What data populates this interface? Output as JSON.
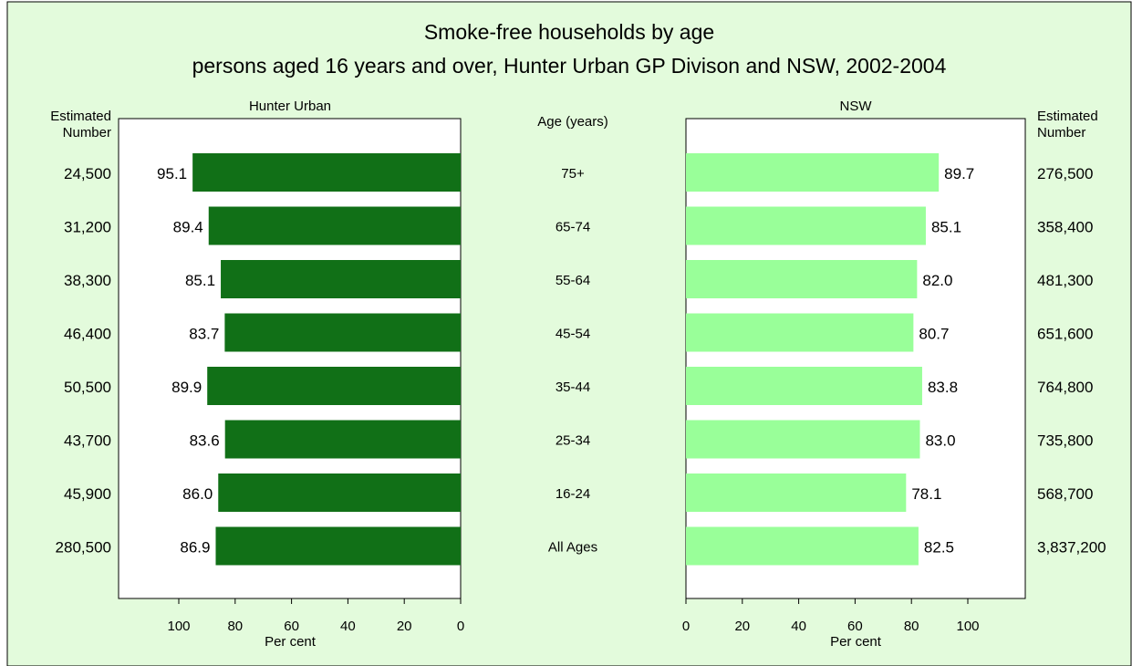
{
  "chart_data": {
    "type": "bar",
    "title": "Smoke-free households by age",
    "subtitle": "persons aged 16 years and over, Hunter Urban  GP Divison and NSW, 2002-2004",
    "categories": [
      "75+",
      "65-74",
      "55-64",
      "45-54",
      "35-44",
      "25-34",
      "16-24",
      "All Ages"
    ],
    "category_header": "Age (years)",
    "estimated_number_label": [
      "Estimated",
      "Number"
    ],
    "xlabel": "Per cent",
    "xlim": [
      0,
      120
    ],
    "xticks": [
      0,
      20,
      40,
      60,
      80,
      100
    ],
    "grid": false,
    "series": [
      {
        "name": "Hunter Urban",
        "values": [
          95.1,
          89.4,
          85.1,
          83.7,
          89.9,
          83.6,
          86.0,
          86.9
        ],
        "value_labels": [
          "95.1",
          "89.4",
          "85.1",
          "83.7",
          "89.9",
          "83.6",
          "86.0",
          "86.9"
        ],
        "estimated_numbers": [
          "24,500",
          "31,200",
          "38,300",
          "46,400",
          "50,500",
          "43,700",
          "45,900",
          "280,500"
        ],
        "color": "#117017",
        "direction": "reversed"
      },
      {
        "name": "NSW",
        "values": [
          89.7,
          85.1,
          82.0,
          80.7,
          83.8,
          83.0,
          78.1,
          82.5
        ],
        "value_labels": [
          "89.7",
          "85.1",
          "82.0",
          "80.7",
          "83.8",
          "83.0",
          "78.1",
          "82.5"
        ],
        "estimated_numbers": [
          "276,500",
          "358,400",
          "481,300",
          "651,600",
          "764,800",
          "735,800",
          "568,700",
          "3,837,200"
        ],
        "color": "#99ff99",
        "direction": "normal"
      }
    ]
  },
  "colors": {
    "background": "#e3fbdc",
    "plot_area": "#ffffff"
  }
}
